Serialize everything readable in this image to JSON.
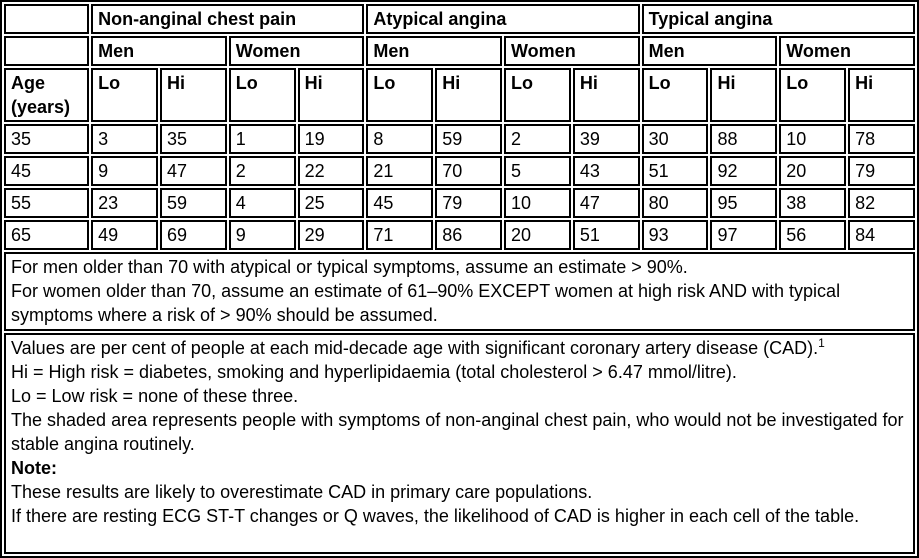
{
  "table": {
    "age_header": "Age (years)",
    "lo_label": "Lo",
    "hi_label": "Hi",
    "shaded_color": "#c9c9c9",
    "groups": [
      {
        "label": "Non-anginal chest pain"
      },
      {
        "label": "Atypical angina"
      },
      {
        "label": "Typical angina"
      }
    ],
    "sex_headers": [
      "Men",
      "Women",
      "Men",
      "Women",
      "Men",
      "Women"
    ],
    "rows": [
      {
        "age": "35",
        "values": [
          "3",
          "35",
          "1",
          "19",
          "8",
          "59",
          "2",
          "39",
          "30",
          "88",
          "10",
          "78"
        ]
      },
      {
        "age": "45",
        "values": [
          "9",
          "47",
          "2",
          "22",
          "21",
          "70",
          "5",
          "43",
          "51",
          "92",
          "20",
          "79"
        ]
      },
      {
        "age": "55",
        "values": [
          "23",
          "59",
          "4",
          "25",
          "45",
          "79",
          "10",
          "47",
          "80",
          "95",
          "38",
          "82"
        ]
      },
      {
        "age": "65",
        "values": [
          "49",
          "69",
          "9",
          "29",
          "71",
          "86",
          "20",
          "51",
          "93",
          "97",
          "56",
          "84"
        ]
      }
    ]
  },
  "notes_over70": {
    "men": "For men older than 70 with atypical or typical symptoms, assume an estimate > 90%.",
    "women": "For women older than 70, assume an estimate of 61–90% EXCEPT women at high risk AND with typical symptoms where a risk of > 90% should be assumed."
  },
  "footnotes": {
    "values_text": "Values are per cent of people at each mid-decade age with significant coronary artery disease (CAD).",
    "values_superscript": "1",
    "hi_def": "Hi = High risk = diabetes, smoking and hyperlipidaemia (total cholesterol > 6.47 mmol/litre).",
    "lo_def": "Lo = Low risk = none of these three.",
    "shaded_note": "The shaded area represents people with symptoms of non-anginal chest pain, who would not be investigated for stable angina routinely.",
    "note_label": "Note:",
    "note_1": "These results are likely to overestimate CAD in primary care populations.",
    "note_2": "If there are resting ECG ST-T changes or Q waves, the likelihood of CAD is higher in each cell of the table."
  }
}
